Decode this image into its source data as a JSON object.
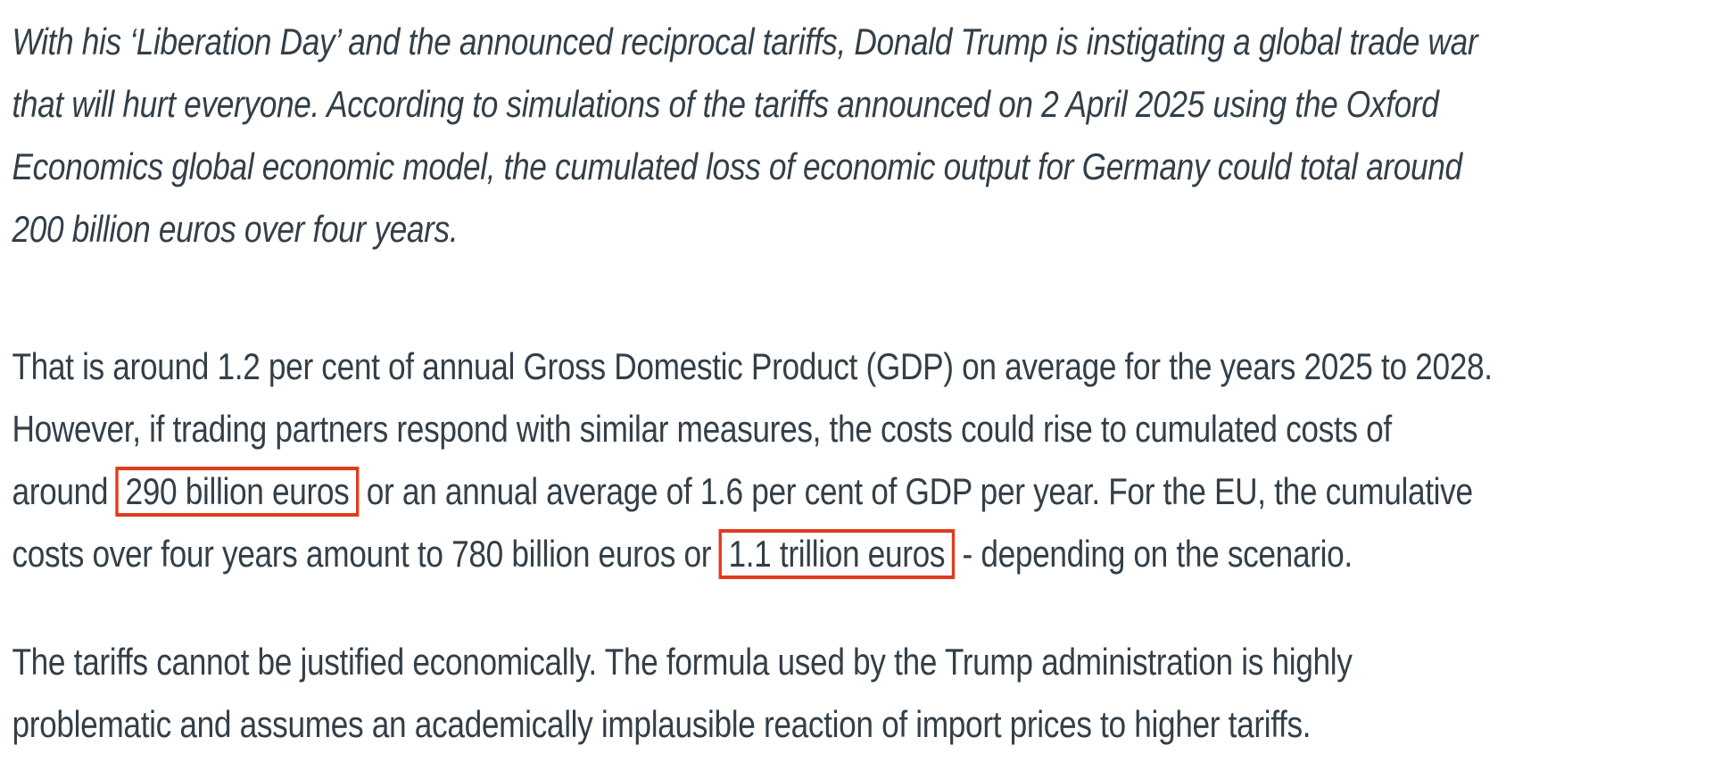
{
  "page": {
    "colors": {
      "text": "#333f48",
      "highlight_border": "#e23a1c",
      "background": "#ffffff"
    }
  },
  "article": {
    "intro": {
      "style": "italic",
      "lines": [
        "With his ‘Liberation Day’ and the announced reciprocal tariffs, Donald Trump is instigating a global trade war",
        "that will hurt everyone. According to simulations of the tariffs announced on 2 April 2025 using the Oxford",
        "Economics global economic model, the cumulated loss of economic output for Germany could total around",
        "200 billion euros over four years."
      ]
    },
    "costs": {
      "line1": "That is around 1.2 per cent of annual Gross Domestic Product (GDP) on average for the years 2025 to 2028.",
      "line2": "However, if trading partners respond with similar measures, the costs could rise to cumulated costs of",
      "line3_before": "around",
      "line3_highlight": "290 billion euros",
      "line3_after": "or an annual average of 1.6 per cent of GDP per year. For the EU, the cumulative",
      "line4_before": "costs over four years amount to 780 billion euros or",
      "line4_highlight": "1.1 trillion euros",
      "line4_after": "- depending on the scenario."
    },
    "formula": {
      "line1": "The tariffs cannot be justified economically. The formula used by the Trump administration is highly",
      "line2": "problematic and assumes an academically implausible reaction of import prices to higher tariffs."
    }
  }
}
